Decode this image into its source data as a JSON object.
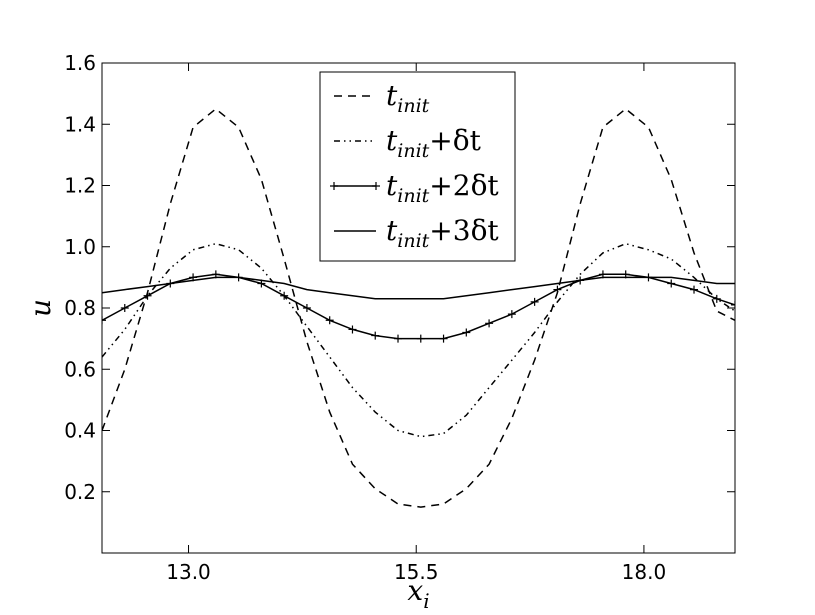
{
  "chart_data": {
    "type": "line",
    "xlabel": "x",
    "xlabel_sub": "i",
    "ylabel": "u",
    "xlim": [
      12.05,
      19.0
    ],
    "ylim": [
      0.0,
      1.6
    ],
    "xticks": [
      13.0,
      15.5,
      18.0
    ],
    "xtick_labels": [
      "13.0",
      "15.5",
      "18.0"
    ],
    "yticks": [
      0.2,
      0.4,
      0.6,
      0.8,
      1.0,
      1.2,
      1.4,
      1.6
    ],
    "ytick_labels": [
      "0.2",
      "0.4",
      "0.6",
      "0.8",
      "1.0",
      "1.2",
      "1.4",
      "1.6"
    ],
    "grid": false,
    "legend_position": "top-center",
    "x": [
      12.05,
      12.3,
      12.55,
      12.8,
      13.05,
      13.3,
      13.55,
      13.8,
      14.05,
      14.3,
      14.55,
      14.8,
      15.05,
      15.3,
      15.55,
      15.8,
      16.05,
      16.3,
      16.55,
      16.8,
      17.05,
      17.3,
      17.55,
      17.8,
      18.05,
      18.3,
      18.55,
      18.8,
      19.0
    ],
    "series": [
      {
        "name_base": "t",
        "name_sub": "init",
        "name_suffix": "",
        "style": "dashed",
        "values": [
          0.4,
          0.6,
          0.85,
          1.14,
          1.39,
          1.45,
          1.39,
          1.22,
          0.96,
          0.69,
          0.46,
          0.29,
          0.21,
          0.16,
          0.15,
          0.16,
          0.21,
          0.29,
          0.44,
          0.63,
          0.85,
          1.14,
          1.39,
          1.45,
          1.39,
          1.22,
          0.98,
          0.79,
          0.76
        ]
      },
      {
        "name_base": "t",
        "name_sub": "init",
        "name_suffix": "+δt",
        "style": "dashdot",
        "values": [
          0.64,
          0.73,
          0.84,
          0.93,
          0.99,
          1.01,
          0.99,
          0.93,
          0.84,
          0.74,
          0.64,
          0.54,
          0.46,
          0.4,
          0.38,
          0.39,
          0.45,
          0.54,
          0.63,
          0.72,
          0.82,
          0.91,
          0.98,
          1.01,
          0.99,
          0.96,
          0.9,
          0.83,
          0.79
        ]
      },
      {
        "name_base": "t",
        "name_sub": "init",
        "name_suffix": "+2δt",
        "style": "solid-plus",
        "values": [
          0.76,
          0.8,
          0.84,
          0.88,
          0.9,
          0.91,
          0.9,
          0.88,
          0.84,
          0.8,
          0.76,
          0.73,
          0.71,
          0.7,
          0.7,
          0.7,
          0.72,
          0.75,
          0.78,
          0.82,
          0.86,
          0.89,
          0.91,
          0.91,
          0.9,
          0.88,
          0.86,
          0.83,
          0.81
        ]
      },
      {
        "name_base": "t",
        "name_sub": "init",
        "name_suffix": "+3δt",
        "style": "solid",
        "values": [
          0.85,
          0.86,
          0.87,
          0.88,
          0.89,
          0.9,
          0.9,
          0.89,
          0.88,
          0.86,
          0.85,
          0.84,
          0.83,
          0.83,
          0.83,
          0.83,
          0.84,
          0.85,
          0.86,
          0.87,
          0.88,
          0.89,
          0.9,
          0.9,
          0.9,
          0.9,
          0.89,
          0.88,
          0.88
        ]
      }
    ]
  }
}
